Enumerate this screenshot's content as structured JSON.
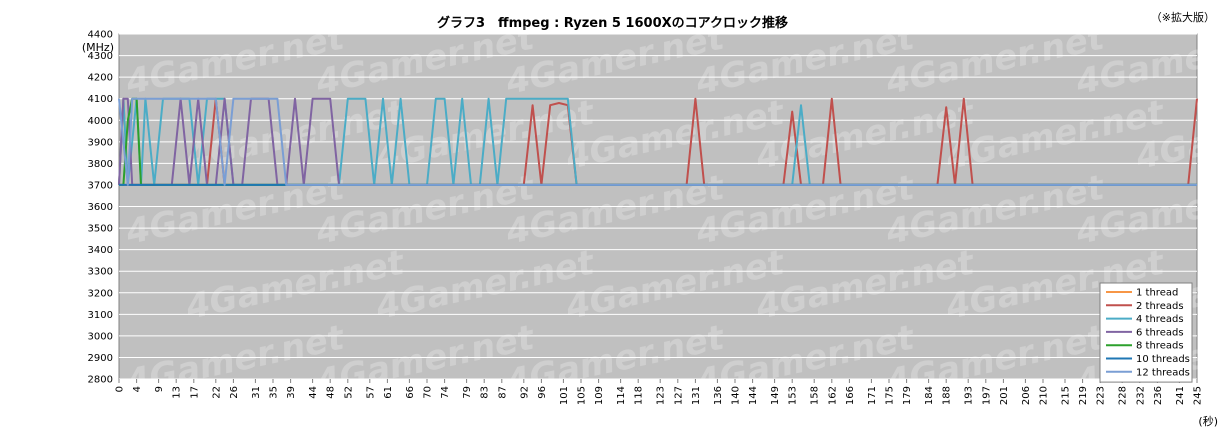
{
  "chart_data": {
    "type": "line",
    "title": "グラフ3　ffmpeg : Ryzen 5 1600Xのコアクロック推移",
    "note": "（※拡大版）",
    "ylabel": "(MHz)",
    "xlabel": "(秒)",
    "ylim": [
      2800,
      4400
    ],
    "xlim": [
      0,
      245
    ],
    "y_ticks": [
      2800,
      2900,
      3000,
      3100,
      3200,
      3300,
      3400,
      3500,
      3600,
      3700,
      3800,
      3900,
      4000,
      4100,
      4200,
      4300,
      4400
    ],
    "x_ticks": [
      0,
      4,
      9,
      13,
      17,
      22,
      26,
      31,
      35,
      39,
      44,
      48,
      52,
      57,
      61,
      66,
      70,
      74,
      79,
      83,
      87,
      92,
      96,
      101,
      105,
      109,
      114,
      118,
      123,
      127,
      131,
      136,
      140,
      144,
      149,
      153,
      158,
      162,
      166,
      171,
      175,
      179,
      184,
      188,
      193,
      197,
      201,
      206,
      210,
      215,
      219,
      223,
      228,
      232,
      236,
      241,
      245
    ],
    "watermark": "4Gamer.net",
    "grid": true,
    "legend_position": "bottom-right",
    "series": [
      {
        "name": "1 thread",
        "color": "#f79646",
        "x": [
          0,
          1,
          2,
          3,
          4,
          245
        ],
        "y": [
          3700,
          4100,
          3700,
          3700,
          3700,
          3700
        ]
      },
      {
        "name": "2 threads",
        "color": "#c0504d",
        "x": [
          0,
          20,
          22,
          24,
          26,
          30,
          92,
          94,
          96,
          98,
          100,
          102,
          104,
          129,
          131,
          133,
          151,
          153,
          155,
          158,
          160,
          162,
          164,
          186,
          188,
          190,
          192,
          194,
          243,
          245
        ],
        "y": [
          3700,
          3700,
          4100,
          3700,
          3700,
          3700,
          3700,
          4070,
          3700,
          4070,
          4080,
          4070,
          3700,
          3700,
          4100,
          3700,
          3700,
          4040,
          3700,
          3700,
          3700,
          4100,
          3700,
          3700,
          4060,
          3700,
          4100,
          3700,
          3700,
          4100
        ]
      },
      {
        "name": "4 threads",
        "color": "#4bacc6",
        "x": [
          0,
          1,
          2,
          4,
          5,
          6,
          8,
          10,
          12,
          14,
          16,
          18,
          20,
          22,
          24,
          26,
          28,
          30,
          32,
          34,
          36,
          38,
          40,
          42,
          44,
          46,
          48,
          50,
          52,
          54,
          56,
          58,
          60,
          62,
          64,
          66,
          68,
          70,
          72,
          74,
          76,
          78,
          80,
          82,
          84,
          86,
          88,
          90,
          92,
          94,
          96,
          98,
          100,
          102,
          104,
          106,
          153,
          155,
          157,
          245
        ],
        "y": [
          3700,
          4100,
          3700,
          4100,
          3700,
          4100,
          3700,
          4100,
          4100,
          4100,
          4100,
          3700,
          4100,
          4100,
          4100,
          3700,
          3700,
          3700,
          3700,
          3700,
          3700,
          3700,
          3700,
          3700,
          3700,
          3700,
          3700,
          3700,
          4100,
          4100,
          4100,
          3700,
          4100,
          3700,
          4100,
          3700,
          3700,
          3700,
          4100,
          4100,
          3700,
          4100,
          3700,
          3700,
          4100,
          3700,
          4100,
          4100,
          4100,
          4100,
          4100,
          4100,
          4100,
          4100,
          3700,
          3700,
          3700,
          4070,
          3700,
          3700
        ]
      },
      {
        "name": "6 threads",
        "color": "#8064a2",
        "x": [
          0,
          1,
          2,
          3,
          4,
          6,
          12,
          14,
          16,
          18,
          20,
          22,
          24,
          26,
          28,
          30,
          32,
          34,
          36,
          38,
          40,
          42,
          44,
          46,
          48,
          50,
          52,
          245
        ],
        "y": [
          3700,
          4100,
          4100,
          3700,
          3700,
          3700,
          3700,
          4100,
          3700,
          4100,
          3700,
          3700,
          4100,
          3700,
          3700,
          4100,
          4100,
          4100,
          3700,
          3700,
          4100,
          3700,
          4100,
          4100,
          4100,
          3700,
          3700,
          3700
        ]
      },
      {
        "name": "8 threads",
        "color": "#2ca02c",
        "x": [
          0,
          1,
          2,
          3,
          4,
          5,
          6,
          8,
          40,
          42,
          245
        ],
        "y": [
          3700,
          3700,
          4000,
          4100,
          4100,
          3700,
          3700,
          3700,
          3700,
          3700,
          3700
        ]
      },
      {
        "name": "10 threads",
        "color": "#1f77b4",
        "x": [
          0,
          245
        ],
        "y": [
          3700,
          3700
        ]
      },
      {
        "name": "12 threads",
        "color": "#7a9ed4",
        "x": [
          0,
          2,
          3,
          4,
          6,
          8,
          10,
          12,
          14,
          16,
          18,
          20,
          22,
          24,
          26,
          28,
          30,
          32,
          34,
          36,
          38,
          40,
          245
        ],
        "y": [
          4100,
          3700,
          4100,
          4100,
          4100,
          4100,
          4100,
          4100,
          4100,
          4100,
          4100,
          4100,
          4100,
          3700,
          4100,
          4100,
          4100,
          4100,
          4100,
          4100,
          3700,
          3700,
          3700
        ]
      }
    ]
  }
}
